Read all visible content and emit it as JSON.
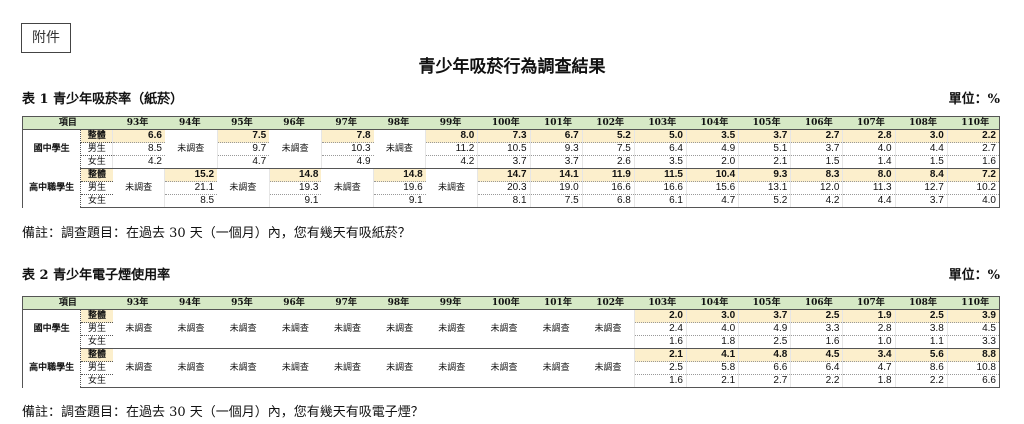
{
  "attachment_label": "附件",
  "title": "青少年吸菸行為調查結果",
  "unit_label": "單位：%",
  "header_item": "項目",
  "not_surveyed": "未調查",
  "years": [
    "93年",
    "94年",
    "95年",
    "96年",
    "97年",
    "98年",
    "99年",
    "100年",
    "101年",
    "102年",
    "103年",
    "104年",
    "105年",
    "106年",
    "107年",
    "108年",
    "110年"
  ],
  "sub_labels": [
    "整體",
    "男生",
    "女生"
  ],
  "colors": {
    "header_bg": "#d6e9c6",
    "overall_bg": "#fcefcc"
  },
  "tables": [
    {
      "caption": "表 1 青少年吸菸率（紙菸）",
      "note": "備註：調查題目：在過去 30 天（一個月）內，您有幾天有吸紙菸？",
      "groups": [
        {
          "label": "國中學生",
          "rows": [
            [
              6.6,
              null,
              7.5,
              null,
              7.8,
              null,
              8.0,
              7.3,
              6.7,
              5.2,
              5.0,
              3.5,
              3.7,
              2.7,
              2.8,
              3.0,
              2.2
            ],
            [
              8.5,
              null,
              9.7,
              null,
              10.3,
              null,
              11.2,
              10.5,
              9.3,
              7.5,
              6.4,
              4.9,
              5.1,
              3.7,
              4.0,
              4.4,
              2.7
            ],
            [
              4.2,
              null,
              4.7,
              null,
              4.9,
              null,
              4.2,
              3.7,
              3.7,
              2.6,
              3.5,
              2.0,
              2.1,
              1.5,
              1.4,
              1.5,
              1.6
            ]
          ]
        },
        {
          "label": "高中職學生",
          "rows": [
            [
              null,
              15.2,
              null,
              14.8,
              null,
              14.8,
              null,
              14.7,
              14.1,
              11.9,
              11.5,
              10.4,
              9.3,
              8.3,
              8.0,
              8.4,
              7.2
            ],
            [
              null,
              21.1,
              null,
              19.3,
              null,
              19.6,
              null,
              20.3,
              19.0,
              16.6,
              16.6,
              15.6,
              13.1,
              12.0,
              11.3,
              12.7,
              10.2
            ],
            [
              null,
              8.5,
              null,
              9.1,
              null,
              9.1,
              null,
              8.1,
              7.5,
              6.8,
              6.1,
              4.7,
              5.2,
              4.2,
              4.4,
              3.7,
              4.0
            ]
          ]
        }
      ]
    },
    {
      "caption": "表 2 青少年電子煙使用率",
      "note": "備註：調查題目：在過去 30 天（一個月）內，您有幾天有吸電子煙？",
      "groups": [
        {
          "label": "國中學生",
          "rows": [
            [
              null,
              null,
              null,
              null,
              null,
              null,
              null,
              null,
              null,
              null,
              2.0,
              3.0,
              3.7,
              2.5,
              1.9,
              2.5,
              3.9
            ],
            [
              null,
              null,
              null,
              null,
              null,
              null,
              null,
              null,
              null,
              null,
              2.4,
              4.0,
              4.9,
              3.3,
              2.8,
              3.8,
              4.5
            ],
            [
              null,
              null,
              null,
              null,
              null,
              null,
              null,
              null,
              null,
              null,
              1.6,
              1.8,
              2.5,
              1.6,
              1.0,
              1.1,
              3.3
            ]
          ]
        },
        {
          "label": "高中職學生",
          "rows": [
            [
              null,
              null,
              null,
              null,
              null,
              null,
              null,
              null,
              null,
              null,
              2.1,
              4.1,
              4.8,
              4.5,
              3.4,
              5.6,
              8.8
            ],
            [
              null,
              null,
              null,
              null,
              null,
              null,
              null,
              null,
              null,
              null,
              2.5,
              5.8,
              6.6,
              6.4,
              4.7,
              8.6,
              10.8
            ],
            [
              null,
              null,
              null,
              null,
              null,
              null,
              null,
              null,
              null,
              null,
              1.6,
              2.1,
              2.7,
              2.2,
              1.8,
              2.2,
              6.6
            ]
          ]
        }
      ]
    }
  ]
}
